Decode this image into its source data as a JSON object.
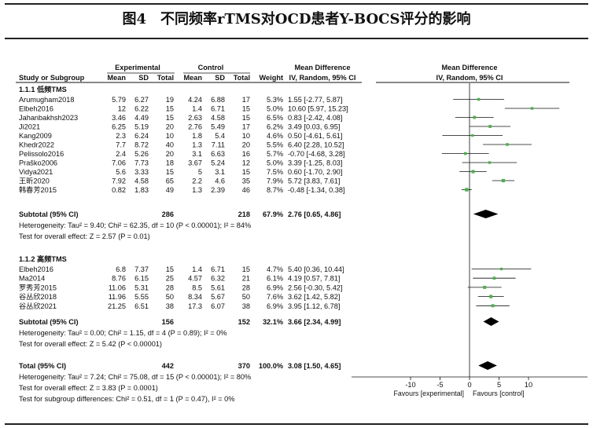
{
  "figure": {
    "title": "图4　不同频率rTMS对OCD患者Y-BOCS评分的影响"
  },
  "headers": {
    "group_exp": "Experimental",
    "group_ctrl": "Control",
    "md_text": "Mean Difference",
    "md_plot": "Mean Difference",
    "study": "Study or Subgroup",
    "mean": "Mean",
    "sd": "SD",
    "total": "Total",
    "weight": "Weight",
    "ci_text": "IV, Random, 95% CI",
    "ci_plot": "IV, Random, 95% CI"
  },
  "chart_data": {
    "type": "forest",
    "xlim": [
      -20,
      20
    ],
    "ticks": [
      -10,
      -5,
      0,
      5,
      10
    ],
    "tick_labels": [
      "-10",
      "-5",
      "0",
      "5",
      "10"
    ],
    "favours_left": "Favours [experimental]",
    "favours_right": "Favours [control]",
    "subgroups": [
      {
        "label": "1.1.1 低频TMS",
        "studies": [
          {
            "name": "Arumugham2018",
            "e_mean": "5.79",
            "e_sd": "6.27",
            "e_n": "19",
            "c_mean": "4.24",
            "c_sd": "6.88",
            "c_n": "17",
            "weight": "5.3%",
            "ci_text": "1.55 [-2.77, 5.87]",
            "md": 1.55,
            "lo": -2.77,
            "hi": 5.87
          },
          {
            "name": "Elbeh2016",
            "e_mean": "12",
            "e_sd": "6.22",
            "e_n": "15",
            "c_mean": "1.4",
            "c_sd": "6.71",
            "c_n": "15",
            "weight": "5.0%",
            "ci_text": "10.60 [5.97, 15.23]",
            "md": 10.6,
            "lo": 5.97,
            "hi": 15.23
          },
          {
            "name": "Jahanbakhsh2023",
            "e_mean": "3.46",
            "e_sd": "4.49",
            "e_n": "15",
            "c_mean": "2.63",
            "c_sd": "4.58",
            "c_n": "15",
            "weight": "6.5%",
            "ci_text": "0.83 [-2.42, 4.08]",
            "md": 0.83,
            "lo": -2.42,
            "hi": 4.08
          },
          {
            "name": "Ji2021",
            "e_mean": "6.25",
            "e_sd": "5.19",
            "e_n": "20",
            "c_mean": "2.76",
            "c_sd": "5.49",
            "c_n": "17",
            "weight": "6.2%",
            "ci_text": "3.49 [0.03, 6.95]",
            "md": 3.49,
            "lo": 0.03,
            "hi": 6.95
          },
          {
            "name": "Kang2009",
            "e_mean": "2.3",
            "e_sd": "6.24",
            "e_n": "10",
            "c_mean": "1.8",
            "c_sd": "5.4",
            "c_n": "10",
            "weight": "4.6%",
            "ci_text": "0.50 [-4.61, 5.61]",
            "md": 0.5,
            "lo": -4.61,
            "hi": 5.61
          },
          {
            "name": "Khedr2022",
            "e_mean": "7.7",
            "e_sd": "8.72",
            "e_n": "40",
            "c_mean": "1.3",
            "c_sd": "7.11",
            "c_n": "20",
            "weight": "5.5%",
            "ci_text": "6.40 [2.28, 10.52]",
            "md": 6.4,
            "lo": 2.28,
            "hi": 10.52
          },
          {
            "name": "Pelissolo2016",
            "e_mean": "2.4",
            "e_sd": "5.26",
            "e_n": "20",
            "c_mean": "3.1",
            "c_sd": "6.63",
            "c_n": "16",
            "weight": "5.7%",
            "ci_text": "-0.70 [-4.68, 3.28]",
            "md": -0.7,
            "lo": -4.68,
            "hi": 3.28
          },
          {
            "name": "Praško2006",
            "e_mean": "7.06",
            "e_sd": "7.73",
            "e_n": "18",
            "c_mean": "3.67",
            "c_sd": "5.24",
            "c_n": "12",
            "weight": "5.0%",
            "ci_text": "3.39 [-1.25, 8.03]",
            "md": 3.39,
            "lo": -1.25,
            "hi": 8.03
          },
          {
            "name": "Vidya2021",
            "e_mean": "5.6",
            "e_sd": "3.33",
            "e_n": "15",
            "c_mean": "5",
            "c_sd": "3.1",
            "c_n": "15",
            "weight": "7.5%",
            "ci_text": "0.60 [-1.70, 2.90]",
            "md": 0.6,
            "lo": -1.7,
            "hi": 2.9
          },
          {
            "name": "王昕2020",
            "e_mean": "7.92",
            "e_sd": "4.58",
            "e_n": "65",
            "c_mean": "2.2",
            "c_sd": "4.6",
            "c_n": "35",
            "weight": "7.9%",
            "ci_text": "5.72 [3.83, 7.61]",
            "md": 5.72,
            "lo": 3.83,
            "hi": 7.61
          },
          {
            "name": "韩春芳2015",
            "e_mean": "0.82",
            "e_sd": "1.83",
            "e_n": "49",
            "c_mean": "1.3",
            "c_sd": "2.39",
            "c_n": "46",
            "weight": "8.7%",
            "ci_text": "-0.48 [-1.34, 0.38]",
            "md": -0.48,
            "lo": -1.34,
            "hi": 0.38
          }
        ],
        "subtotal": {
          "label": "Subtotal (95% CI)",
          "e_n": "286",
          "c_n": "218",
          "weight": "67.9%",
          "ci_text": "2.76 [0.65, 4.86]",
          "md": 2.76,
          "lo": 0.65,
          "hi": 4.86
        },
        "heterogeneity": "Heterogeneity: Tau² = 9.40; Chi² = 62.35, df = 10 (P < 0.00001); I² = 84%",
        "overall_effect": "Test for overall effect: Z = 2.57 (P = 0.01)"
      },
      {
        "label": "1.1.2 高频TMS",
        "studies": [
          {
            "name": "Elbeh2016",
            "e_mean": "6.8",
            "e_sd": "7.37",
            "e_n": "15",
            "c_mean": "1.4",
            "c_sd": "6.71",
            "c_n": "15",
            "weight": "4.7%",
            "ci_text": "5.40 [0.36, 10.44]",
            "md": 5.4,
            "lo": 0.36,
            "hi": 10.44
          },
          {
            "name": "Ma2014",
            "e_mean": "8.76",
            "e_sd": "6.15",
            "e_n": "25",
            "c_mean": "4.57",
            "c_sd": "6.32",
            "c_n": "21",
            "weight": "6.1%",
            "ci_text": "4.19 [0.57, 7.81]",
            "md": 4.19,
            "lo": 0.57,
            "hi": 7.81
          },
          {
            "name": "罗秀芳2015",
            "e_mean": "11.06",
            "e_sd": "5.31",
            "e_n": "28",
            "c_mean": "8.5",
            "c_sd": "5.61",
            "c_n": "28",
            "weight": "6.9%",
            "ci_text": "2.56 [-0.30, 5.42]",
            "md": 2.56,
            "lo": -0.3,
            "hi": 5.42
          },
          {
            "name": "谷丛欣2018",
            "e_mean": "11.96",
            "e_sd": "5.55",
            "e_n": "50",
            "c_mean": "8.34",
            "c_sd": "5.67",
            "c_n": "50",
            "weight": "7.6%",
            "ci_text": "3.62 [1.42, 5.82]",
            "md": 3.62,
            "lo": 1.42,
            "hi": 5.82
          },
          {
            "name": "谷丛欣2021",
            "e_mean": "21.25",
            "e_sd": "6.51",
            "e_n": "38",
            "c_mean": "17.3",
            "c_sd": "6.07",
            "c_n": "38",
            "weight": "6.9%",
            "ci_text": "3.95 [1.12, 6.78]",
            "md": 3.95,
            "lo": 1.12,
            "hi": 6.78
          }
        ],
        "subtotal": {
          "label": "Subtotal (95% CI)",
          "e_n": "156",
          "c_n": "152",
          "weight": "32.1%",
          "ci_text": "3.66 [2.34, 4.99]",
          "md": 3.66,
          "lo": 2.34,
          "hi": 4.99
        },
        "heterogeneity": "Heterogeneity: Tau² = 0.00; Chi² = 1.15, df = 4 (P = 0.89); I² = 0%",
        "overall_effect": "Test for overall effect: Z = 5.42 (P < 0.00001)"
      }
    ],
    "total": {
      "label": "Total (95% CI)",
      "e_n": "442",
      "c_n": "370",
      "weight": "100.0%",
      "ci_text": "3.08 [1.50, 4.65]",
      "md": 3.08,
      "lo": 1.5,
      "hi": 4.65
    },
    "total_heterogeneity": "Heterogeneity: Tau² = 7.24; Chi² = 75.08, df = 15 (P < 0.00001); I² = 80%",
    "total_overall_effect": "Test for overall effect: Z = 3.83 (P = 0.0001)",
    "subgroup_differences": "Test for subgroup differences: Chi² = 0.51, df = 1 (P = 0.47), I² = 0%",
    "colors": {
      "marker": "#4caf50",
      "line": "#111111",
      "diamond": "#000000"
    }
  }
}
